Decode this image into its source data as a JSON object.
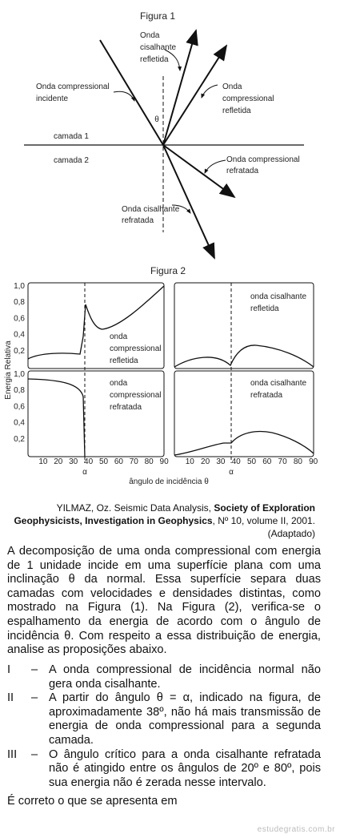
{
  "figure1": {
    "title": "Figura 1",
    "theta": "θ",
    "labels": [
      [
        "Onda",
        "cisalhante",
        "refletida"
      ],
      [
        "Onda compressional",
        "incidente"
      ],
      [
        "Onda",
        "compressional",
        "refletida"
      ],
      [
        "camada 1"
      ],
      [
        "camada 2"
      ],
      [
        "Onda compressional",
        "refratada"
      ],
      [
        "Onda cisalhante",
        "refratada"
      ]
    ]
  },
  "figure2": {
    "title": "Figura 2",
    "y_axis_label": "Energia Relativa",
    "x_axis_label": "ângulo de incidência θ",
    "yticks": [
      "1,0",
      "0,8",
      "0,6",
      "0,4",
      "0,2"
    ],
    "xticks": [
      "10",
      "20",
      "30",
      "40",
      "50",
      "60",
      "70",
      "80",
      "90"
    ],
    "alpha": "α",
    "panels": [
      [
        "onda",
        "compressional",
        "refletida"
      ],
      [
        "onda cisalhante",
        "refletida"
      ],
      [
        "onda",
        "compressional",
        "refratada"
      ],
      [
        "onda cisalhante",
        "refratada"
      ]
    ]
  },
  "citation": {
    "part1": "YILMAZ, Oz. Seismic Data Analysis, ",
    "bold": "Society of Exploration Geophysicists, Investigation in Geophysics",
    "part2": ", Nº 10, volume II, 2001.",
    "note": "(Adaptado)"
  },
  "body": "A decomposição de uma onda compressional com energia de 1 unidade incide em uma superfície plana com uma inclinação θ da normal. Essa superfície separa duas camadas com velocidades e densidades distintas, como mostrado na Figura (1). Na Figura (2), verifica-se o espalhamento da energia de acordo com o ângulo de incidência θ. Com respeito a essa distribuição de energia, analise as proposições abaixo.",
  "items": [
    {
      "num": "I",
      "dash": "–",
      "text": "A onda compressional de incidência normal não gera onda cisalhante."
    },
    {
      "num": "II",
      "dash": "–",
      "text": "A partir do ângulo θ = α, indicado na figura, de aproximadamente 38º, não há mais transmissão de energia de onda compressional para a segunda camada."
    },
    {
      "num": "III",
      "dash": "–",
      "text": "O ângulo crítico para a onda cisalhante refratada não é atingido entre os ângulos de 20º e 80º, pois sua energia não é zerada nesse intervalo."
    }
  ],
  "question": "É correto o que se apresenta em",
  "footer": "estudegratis.com.br"
}
